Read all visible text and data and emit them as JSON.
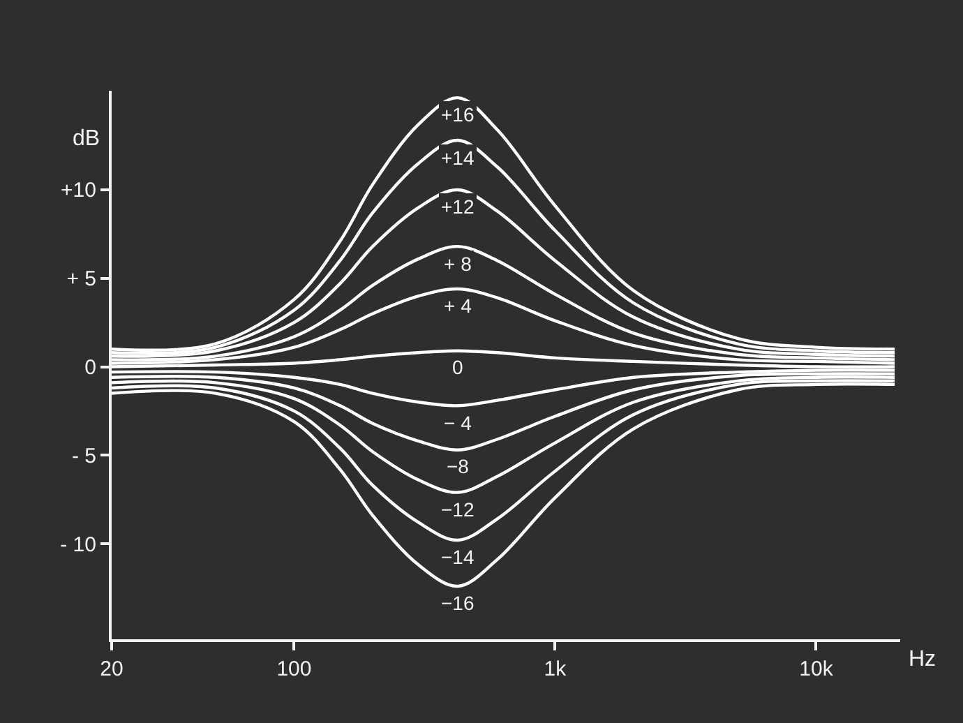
{
  "chart_data": {
    "type": "line",
    "xlabel": "Hz",
    "ylabel": "dB",
    "log": "x",
    "xlim": [
      20,
      21000
    ],
    "xticks": [
      20,
      100,
      {
        "value": 1000,
        "label": "1k"
      },
      {
        "value": 10000,
        "label": "10k"
      }
    ],
    "ylim": [
      -15.4,
      15.6
    ],
    "yticks": [
      {
        "value": 10,
        "label": "+10"
      },
      {
        "value": 5,
        "label": "+ 5"
      },
      0,
      {
        "value": -5,
        "label": "- 5"
      },
      {
        "value": -10,
        "label": "- 10"
      }
    ],
    "grid": false,
    "legend": false,
    "marker": "none",
    "line_style": "solid",
    "x": [
      20,
      50,
      100,
      150,
      200,
      300,
      424,
      600,
      1000,
      2000,
      5000,
      10000,
      20000
    ],
    "series": [
      {
        "name": "+16",
        "color": "#ffffff",
        "values": [
          1.0,
          1.3,
          3.8,
          7.1,
          10.3,
          13.7,
          15.2,
          13.4,
          9.1,
          4.3,
          1.6,
          1.1,
          1.0
        ]
      },
      {
        "name": "+14",
        "color": "#ffffff",
        "values": [
          0.8,
          1.1,
          3.2,
          6.0,
          8.7,
          11.5,
          12.8,
          11.3,
          7.7,
          3.6,
          1.3,
          0.9,
          0.8
        ]
      },
      {
        "name": "+12",
        "color": "#ffffff",
        "values": [
          0.6,
          0.9,
          2.5,
          4.7,
          6.8,
          9.0,
          10.0,
          8.8,
          6.0,
          2.8,
          1.0,
          0.7,
          0.6
        ]
      },
      {
        "name": "+ 8",
        "color": "#ffffff",
        "values": [
          0.4,
          0.6,
          1.7,
          3.2,
          4.6,
          6.1,
          6.8,
          6.0,
          4.1,
          1.9,
          0.7,
          0.5,
          0.4
        ]
      },
      {
        "name": "+ 4",
        "color": "#ffffff",
        "values": [
          0.2,
          0.4,
          1.1,
          2.1,
          3.0,
          4.0,
          4.4,
          3.9,
          2.6,
          1.2,
          0.4,
          0.3,
          0.2
        ]
      },
      {
        "name": "0",
        "color": "#ffffff",
        "values": [
          0,
          0.1,
          0.2,
          0.4,
          0.6,
          0.8,
          0.9,
          0.8,
          0.5,
          0.3,
          0.1,
          0,
          0
        ]
      },
      {
        "name": "− 4",
        "color": "#ffffff",
        "values": [
          -0.3,
          -0.3,
          -0.6,
          -1.0,
          -1.5,
          -2.0,
          -2.2,
          -1.9,
          -1.3,
          -0.6,
          -0.3,
          -0.2,
          -0.2
        ]
      },
      {
        "name": "−8",
        "color": "#ffffff",
        "values": [
          -0.6,
          -0.6,
          -1.2,
          -2.2,
          -3.2,
          -4.2,
          -4.7,
          -4.1,
          -2.8,
          -1.3,
          -0.5,
          -0.4,
          -0.4
        ]
      },
      {
        "name": "−12",
        "color": "#ffffff",
        "values": [
          -0.9,
          -0.9,
          -1.8,
          -3.3,
          -4.8,
          -6.4,
          -7.1,
          -6.2,
          -4.3,
          -2.0,
          -0.8,
          -0.6,
          -0.6
        ]
      },
      {
        "name": "−14",
        "color": "#ffffff",
        "values": [
          -1.2,
          -1.2,
          -2.5,
          -4.6,
          -6.7,
          -8.8,
          -9.8,
          -8.6,
          -5.9,
          -2.7,
          -1.0,
          -0.8,
          -0.8
        ]
      },
      {
        "name": "−16",
        "color": "#ffffff",
        "values": [
          -1.5,
          -1.5,
          -3.1,
          -5.8,
          -8.4,
          -11.2,
          -12.4,
          -10.9,
          -7.4,
          -3.5,
          -1.3,
          -1.0,
          -1.0
        ]
      }
    ]
  }
}
